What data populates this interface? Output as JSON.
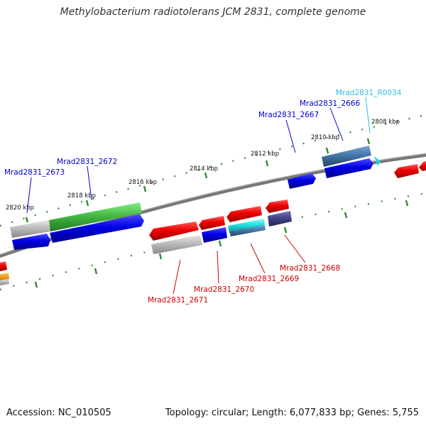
{
  "title": "Methylobacterium radiotolerans JCM 2831, complete genome",
  "footer": {
    "accession": "Accession: NC_010505",
    "summary": "Topology: circular; Length: 6,077,833 bp; Genes: 5,755"
  },
  "scale_labels": [
    "2808 kbp",
    "2810 kbp",
    "2812 kbp",
    "2814 kbp",
    "2816 kbp",
    "2818 kbp",
    "2820 kbp"
  ],
  "gene_labels_blue": [
    "Mrad2831_2673",
    "Mrad2831_2672",
    "Mrad2831_2667",
    "Mrad2831_2666"
  ],
  "gene_label_cyan": "Mrad2831_R0034",
  "gene_labels_red": [
    "Mrad2831_2671",
    "Mrad2831_2670",
    "Mrad2831_2669",
    "Mrad2831_2668"
  ],
  "colors": {
    "forward_cds": "#0000e0",
    "reverse_cds": "#e00000",
    "highlight_green": "#44bb44",
    "steelblue": "#4477aa",
    "cyan": "#33cccc",
    "navy": "#444488",
    "gray": "#bbbbbb",
    "label_blue": "#0000cc",
    "label_red": "#cc0000",
    "label_cyan": "#33bbdd",
    "tick_green": "#337733"
  }
}
